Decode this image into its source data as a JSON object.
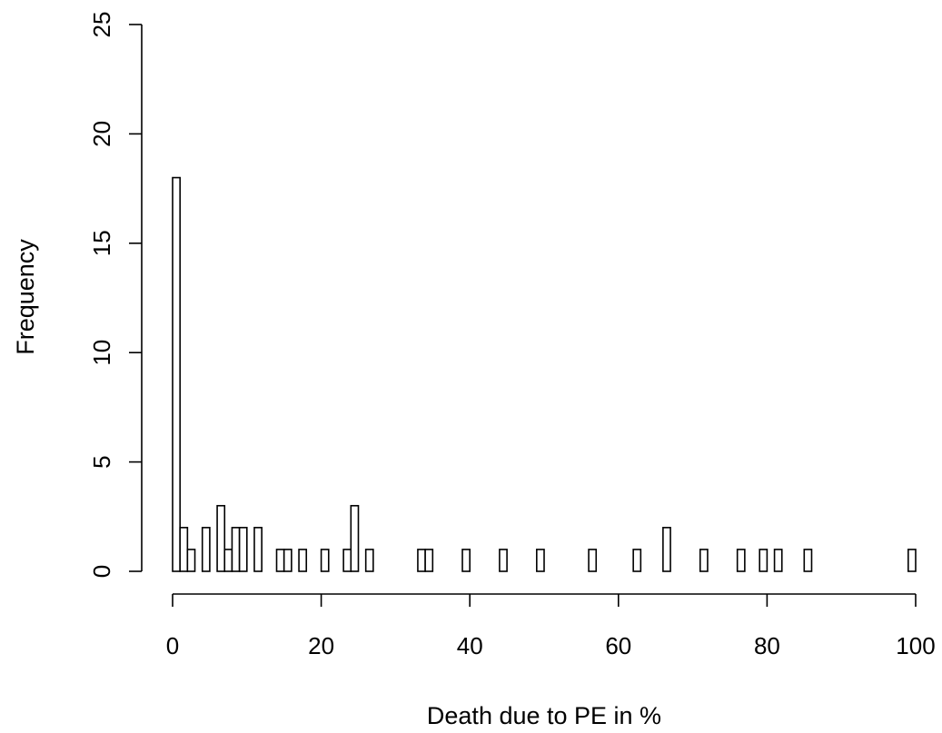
{
  "chart_data": {
    "type": "bar",
    "title": "",
    "xlabel": "Death due to PE in %",
    "ylabel": "Frequency",
    "xlim": [
      0,
      100
    ],
    "ylim": [
      0,
      25
    ],
    "xticks": [
      0,
      20,
      40,
      60,
      80,
      100
    ],
    "yticks": [
      0,
      5,
      10,
      15,
      20,
      25
    ],
    "bin_width": 1,
    "bins": [
      {
        "x": 0,
        "count": 18
      },
      {
        "x": 1,
        "count": 2
      },
      {
        "x": 2,
        "count": 1
      },
      {
        "x": 4,
        "count": 2
      },
      {
        "x": 6,
        "count": 3
      },
      {
        "x": 7,
        "count": 1
      },
      {
        "x": 8,
        "count": 2
      },
      {
        "x": 9,
        "count": 2
      },
      {
        "x": 11,
        "count": 2
      },
      {
        "x": 14,
        "count": 1
      },
      {
        "x": 15,
        "count": 1
      },
      {
        "x": 17,
        "count": 1
      },
      {
        "x": 20,
        "count": 1
      },
      {
        "x": 23,
        "count": 1
      },
      {
        "x": 24,
        "count": 3
      },
      {
        "x": 26,
        "count": 1
      },
      {
        "x": 33,
        "count": 1
      },
      {
        "x": 34,
        "count": 1
      },
      {
        "x": 39,
        "count": 1
      },
      {
        "x": 44,
        "count": 1
      },
      {
        "x": 49,
        "count": 1
      },
      {
        "x": 56,
        "count": 1
      },
      {
        "x": 62,
        "count": 1
      },
      {
        "x": 66,
        "count": 2
      },
      {
        "x": 71,
        "count": 1
      },
      {
        "x": 76,
        "count": 1
      },
      {
        "x": 79,
        "count": 1
      },
      {
        "x": 81,
        "count": 1
      },
      {
        "x": 85,
        "count": 1
      },
      {
        "x": 99,
        "count": 1
      }
    ]
  }
}
